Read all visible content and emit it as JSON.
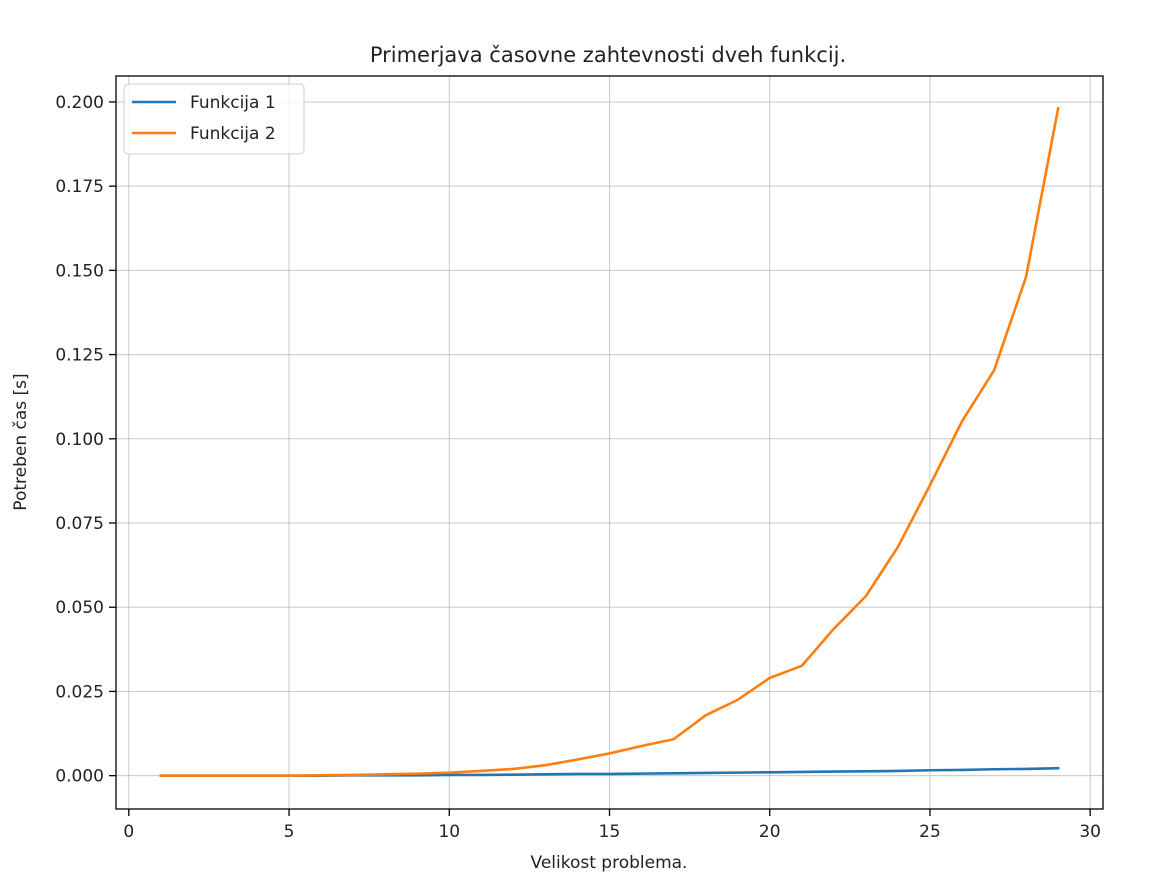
{
  "chart_data": {
    "type": "line",
    "title": "Primerjava časovne zahtevnosti dveh funkcij.",
    "xlabel": "Velikost problema.",
    "ylabel": "Potreben čas [s]",
    "xlim": [
      -0.4,
      30.4
    ],
    "ylim": [
      -0.0099,
      0.2077
    ],
    "xticks": [
      0,
      5,
      10,
      15,
      20,
      25,
      30
    ],
    "xtick_labels": [
      "0",
      "5",
      "10",
      "15",
      "20",
      "25",
      "30"
    ],
    "yticks": [
      0.0,
      0.025,
      0.05,
      0.075,
      0.1,
      0.125,
      0.15,
      0.175,
      0.2
    ],
    "ytick_labels": [
      "0.000",
      "0.025",
      "0.050",
      "0.075",
      "0.100",
      "0.125",
      "0.150",
      "0.175",
      "0.200"
    ],
    "grid": true,
    "legend_position": "top-left",
    "x": [
      1,
      2,
      3,
      4,
      5,
      6,
      7,
      8,
      9,
      10,
      11,
      12,
      13,
      14,
      15,
      16,
      17,
      18,
      19,
      20,
      21,
      22,
      23,
      24,
      25,
      26,
      27,
      28,
      29
    ],
    "series": [
      {
        "name": "Funkcija 1",
        "color": "#1f77b4",
        "values": [
          0.0,
          0.0,
          0.0,
          0.0,
          0.0,
          0.0,
          0.0001,
          0.0001,
          0.0001,
          0.0002,
          0.0002,
          0.0003,
          0.0004,
          0.0005,
          0.0005,
          0.0006,
          0.0007,
          0.0008,
          0.0009,
          0.001,
          0.0011,
          0.0012,
          0.0013,
          0.0014,
          0.0016,
          0.0017,
          0.0019,
          0.002,
          0.0022
        ]
      },
      {
        "name": "Funkcija 2",
        "color": "#ff7f0e",
        "values": [
          0.0,
          0.0,
          0.0,
          0.0,
          0.0,
          0.0001,
          0.0002,
          0.0004,
          0.0006,
          0.0009,
          0.0014,
          0.002,
          0.0031,
          0.0048,
          0.0066,
          0.0088,
          0.0108,
          0.0179,
          0.0225,
          0.029,
          0.0326,
          0.0436,
          0.0533,
          0.0679,
          0.0862,
          0.1052,
          0.1203,
          0.1481,
          0.1981
        ]
      }
    ]
  }
}
